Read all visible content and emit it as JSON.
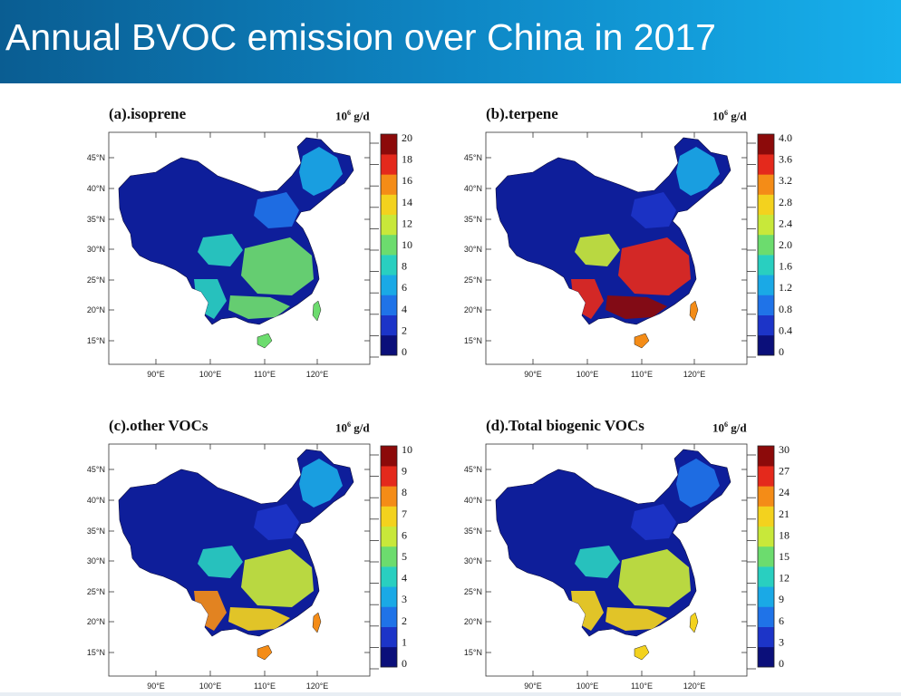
{
  "slide": {
    "title": "Annual BVOC emission over China in 2017"
  },
  "chart_data": [
    {
      "type": "heatmap",
      "title": "(a).isoprene",
      "unit_base": "10",
      "unit_exp": "6",
      "unit_rest": "g/d",
      "colorbar_ticks": [
        "0",
        "2",
        "4",
        "6",
        "8",
        "10",
        "12",
        "14",
        "16",
        "18",
        "20"
      ],
      "lat_ticks": [
        "45°N",
        "40°N",
        "35°N",
        "30°N",
        "25°N",
        "20°N",
        "15°N"
      ],
      "lon_ticks": [
        "90°E",
        "100°E",
        "110°E",
        "120°E"
      ],
      "vmin": 0,
      "vmax": 20,
      "region_values": {
        "northeast": 5,
        "north_plain": 3,
        "sichuan": 7,
        "southeast": 10,
        "south_coast": 9,
        "yunnan": 8,
        "hainan_taiwan": 9
      }
    },
    {
      "type": "heatmap",
      "title": "(b).terpene",
      "unit_base": "10",
      "unit_exp": "6",
      "unit_rest": "g/d",
      "colorbar_ticks": [
        "0",
        "0.4",
        "0.8",
        "1.2",
        "1.6",
        "2.0",
        "2.4",
        "2.8",
        "3.2",
        "3.6",
        "4.0"
      ],
      "lat_ticks": [
        "45°N",
        "40°N",
        "35°N",
        "30°N",
        "25°N",
        "20°N",
        "15°N"
      ],
      "lon_ticks": [
        "90°E",
        "100°E",
        "110°E",
        "120°E"
      ],
      "vmin": 0,
      "vmax": 4,
      "region_values": {
        "northeast": 1.2,
        "north_plain": 0.5,
        "sichuan": 2.4,
        "southeast": 3.6,
        "south_coast": 3.8,
        "yunnan": 3.4,
        "hainan_taiwan": 3.2
      }
    },
    {
      "type": "heatmap",
      "title": "(c).other VOCs",
      "unit_base": "10",
      "unit_exp": "6",
      "unit_rest": "g/d",
      "colorbar_ticks": [
        "0",
        "1",
        "2",
        "3",
        "4",
        "5",
        "6",
        "7",
        "8",
        "9",
        "10"
      ],
      "lat_ticks": [
        "45°N",
        "40°N",
        "35°N",
        "30°N",
        "25°N",
        "20°N",
        "15°N"
      ],
      "lon_ticks": [
        "90°E",
        "100°E",
        "110°E",
        "120°E"
      ],
      "vmin": 0,
      "vmax": 10,
      "region_values": {
        "northeast": 2.5,
        "north_plain": 1.2,
        "sichuan": 4,
        "southeast": 5.5,
        "south_coast": 7,
        "yunnan": 8,
        "hainan_taiwan": 8
      }
    },
    {
      "type": "heatmap",
      "title": "(d).Total biogenic VOCs",
      "unit_base": "10",
      "unit_exp": "6",
      "unit_rest": "g/d",
      "colorbar_ticks": [
        "0",
        "3",
        "6",
        "9",
        "12",
        "15",
        "18",
        "21",
        "24",
        "27",
        "30"
      ],
      "lat_ticks": [
        "45°N",
        "40°N",
        "35°N",
        "30°N",
        "25°N",
        "20°N",
        "15°N"
      ],
      "lon_ticks": [
        "90°E",
        "100°E",
        "110°E",
        "120°E"
      ],
      "vmin": 0,
      "vmax": 30,
      "region_values": {
        "northeast": 7,
        "north_plain": 3,
        "sichuan": 11,
        "southeast": 18,
        "south_coast": 20,
        "yunnan": 21,
        "hainan_taiwan": 21
      }
    }
  ],
  "colors": {
    "banner_start": "#0a5d92",
    "banner_end": "#17b0ec",
    "colormap": [
      "#0b0f7a",
      "#1c34c8",
      "#1f73e8",
      "#1aa9e6",
      "#29cfc0",
      "#6cdc6e",
      "#c8e83a",
      "#f3d21e",
      "#f48c17",
      "#e4291c",
      "#8c0a0a"
    ],
    "low_emission": "#0e1e9a"
  }
}
